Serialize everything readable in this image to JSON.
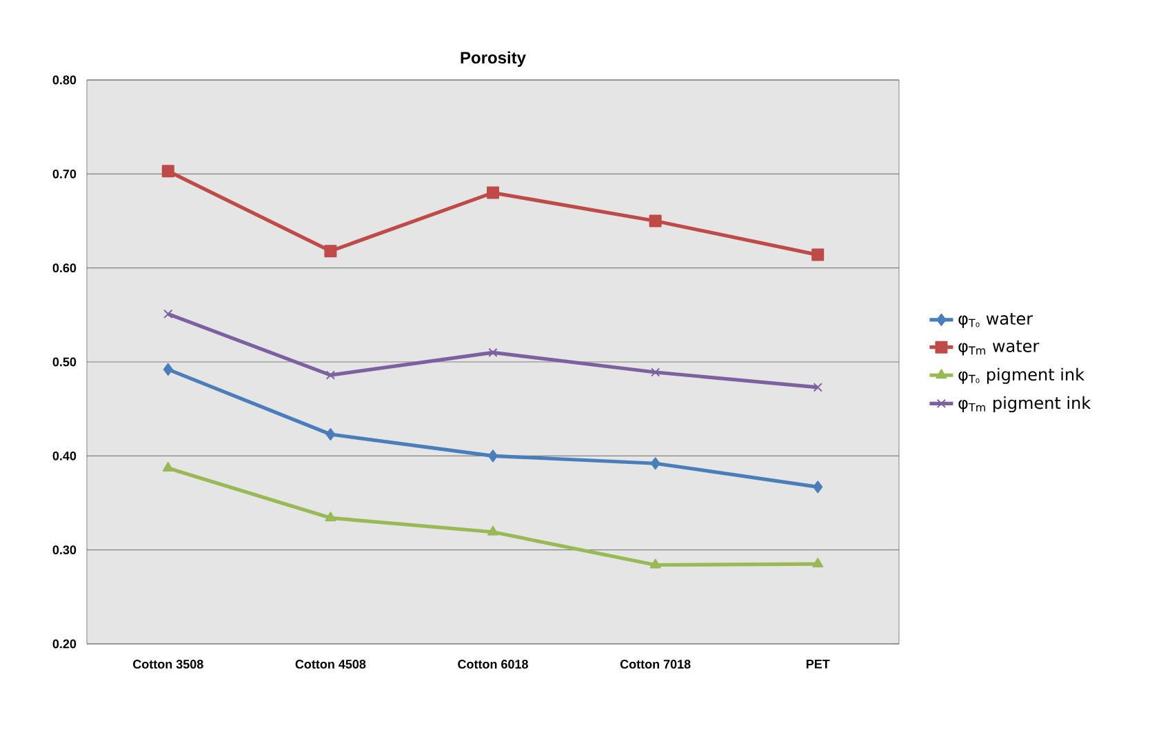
{
  "chart_data": {
    "type": "line",
    "title": "Porosity",
    "categories": [
      "Cotton 3508",
      "Cotton 4508",
      "Cotton 6018",
      "Cotton 7018",
      "PET"
    ],
    "series": [
      {
        "name": "φ$_{T₀}$ water",
        "color": "#4a7ebb",
        "marker": "diamond",
        "values": [
          0.492,
          0.423,
          0.4,
          0.392,
          0.367
        ]
      },
      {
        "name": "φ$_{Tm}$ water",
        "color": "#be4b48",
        "marker": "square",
        "values": [
          0.703,
          0.618,
          0.68,
          0.65,
          0.614
        ]
      },
      {
        "name": "φ$_{T₀}$ pigment ink",
        "color": "#98b954",
        "marker": "triangle",
        "values": [
          0.387,
          0.334,
          0.319,
          0.284,
          0.285
        ]
      },
      {
        "name": "φ$_{Tm}$ pigment ink",
        "color": "#7d60a0",
        "marker": "cross",
        "values": [
          0.551,
          0.486,
          0.51,
          0.489,
          0.473
        ]
      }
    ],
    "ylim": [
      0.2,
      0.8
    ],
    "yticks": [
      {
        "value": 0.2,
        "label": "0.20"
      },
      {
        "value": 0.3,
        "label": "0.30"
      },
      {
        "value": 0.4,
        "label": "0.40"
      },
      {
        "value": 0.5,
        "label": "0.50"
      },
      {
        "value": 0.6,
        "label": "0.60"
      },
      {
        "value": 0.7,
        "label": "0.70"
      },
      {
        "value": 0.8,
        "label": "0.80"
      }
    ],
    "grid": "y",
    "legend": "right",
    "line_style": "solid"
  }
}
